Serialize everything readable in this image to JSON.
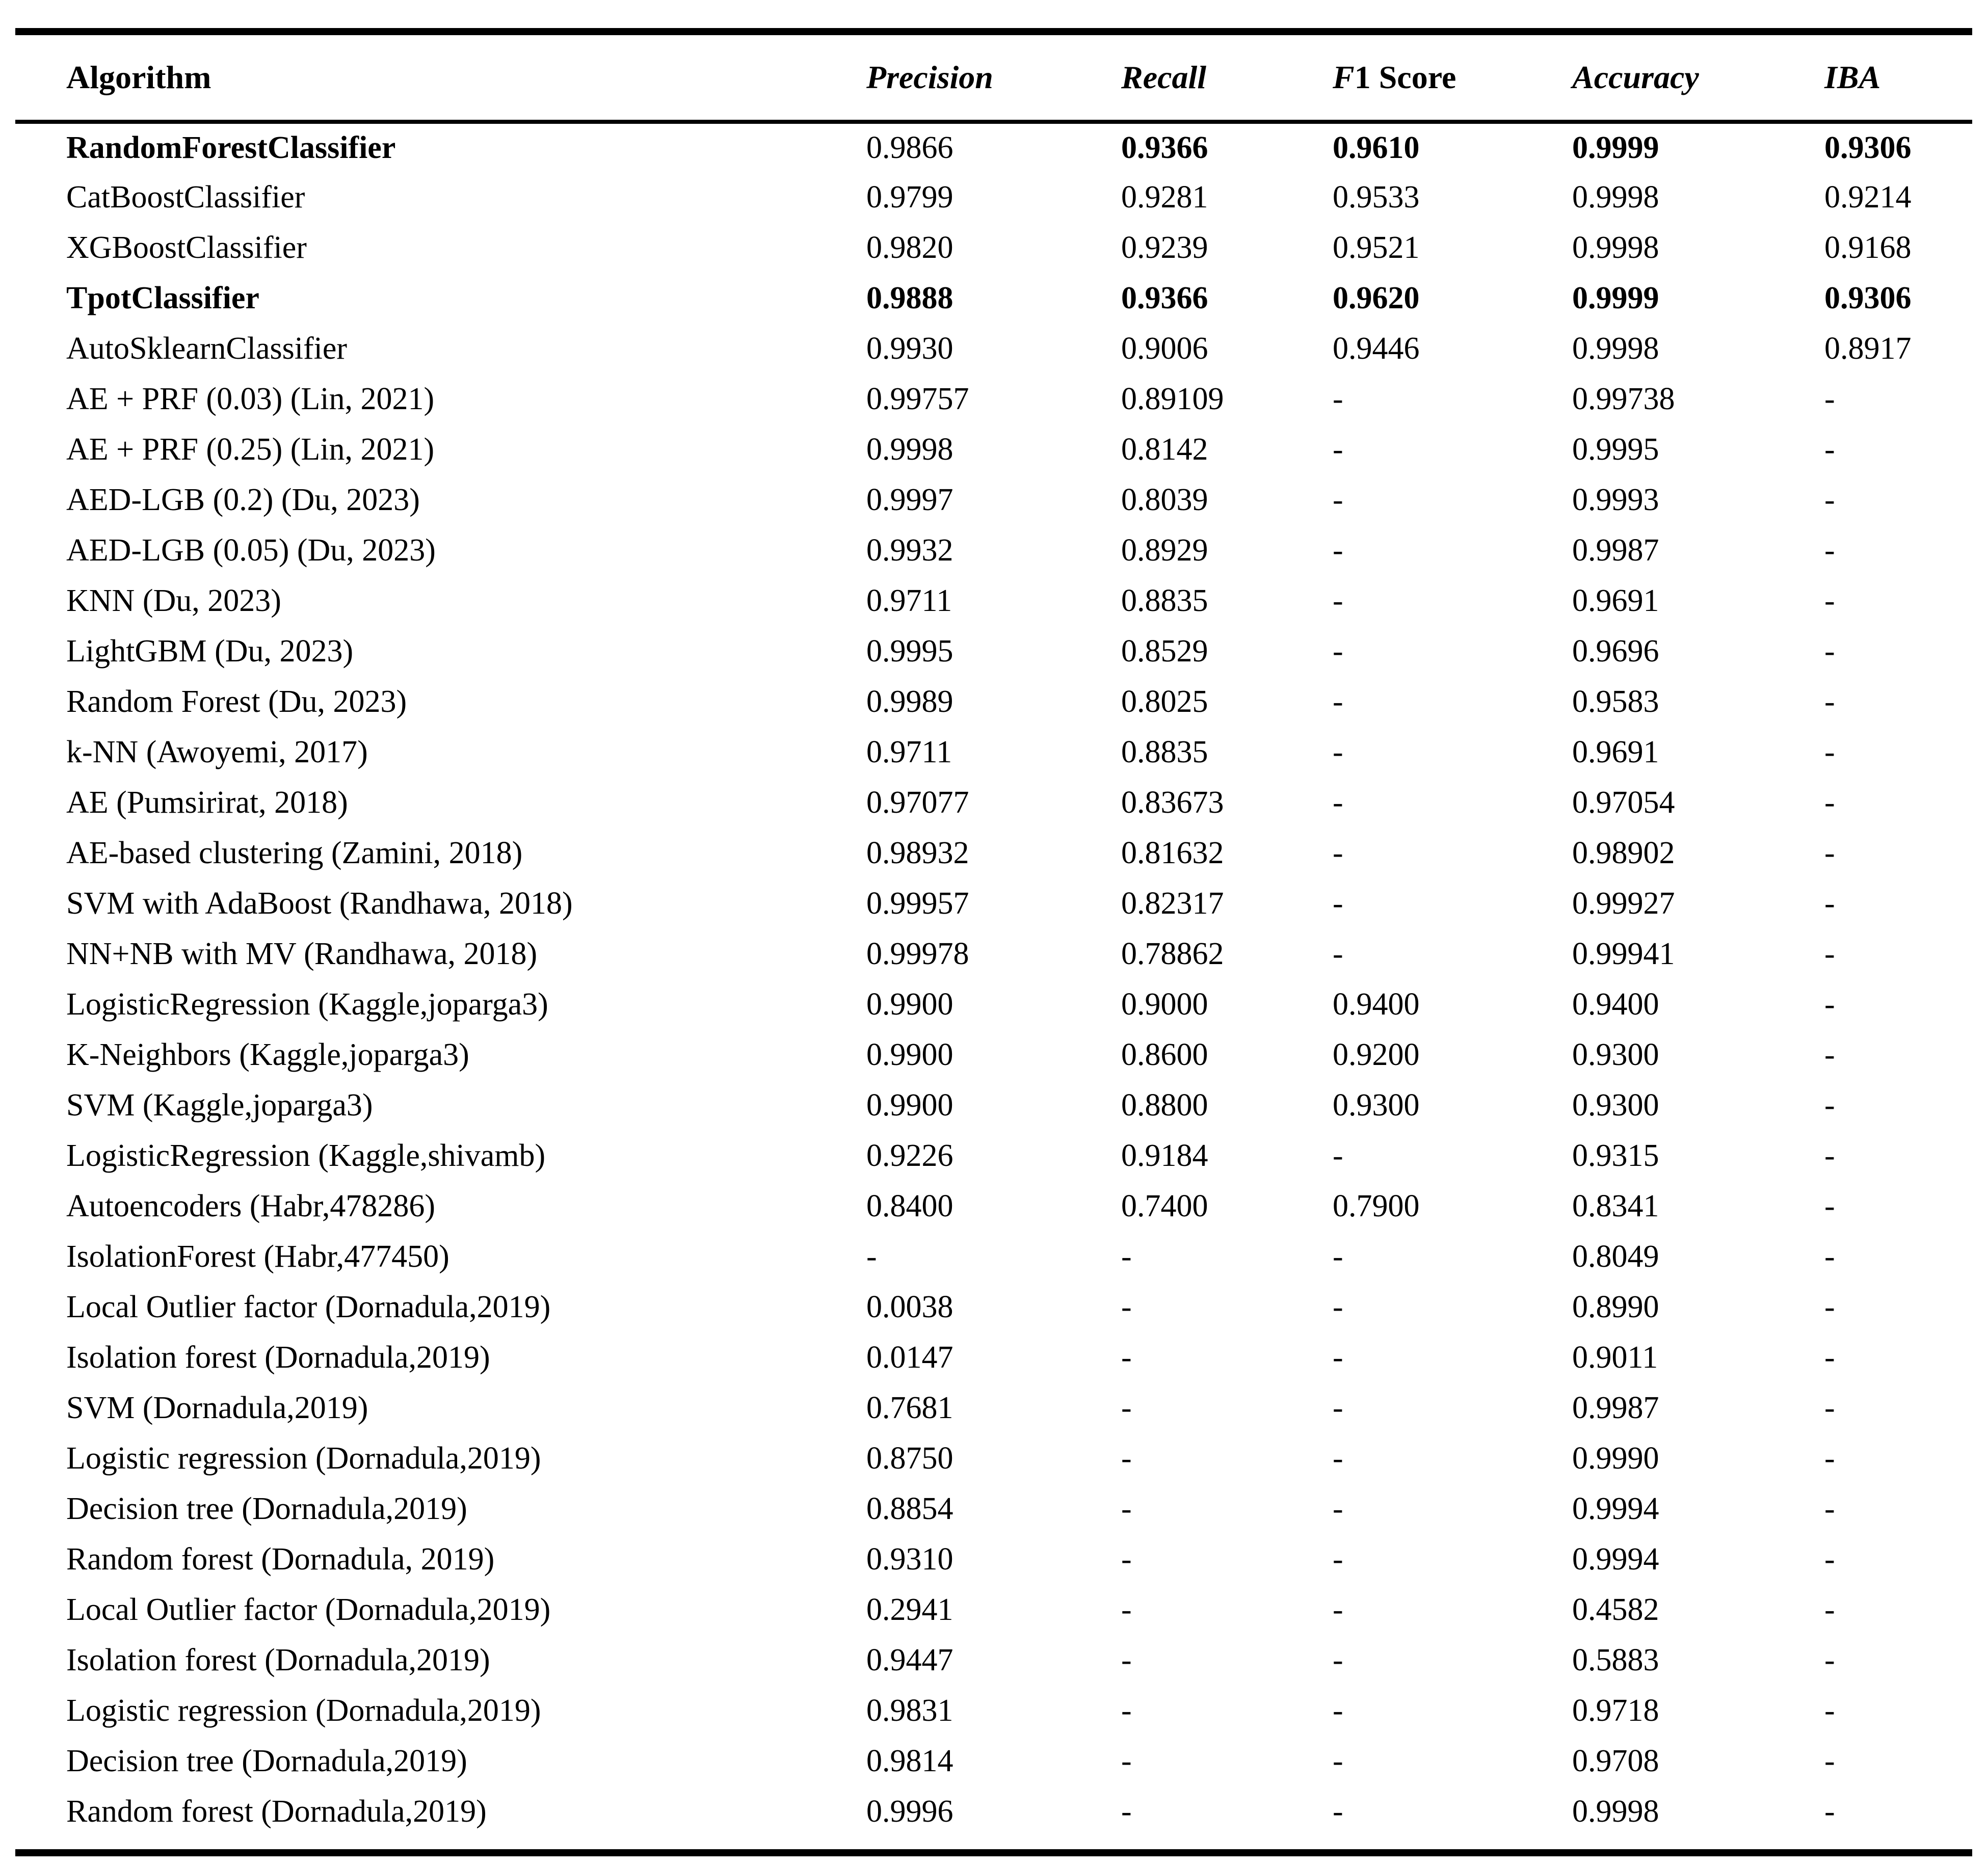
{
  "table": {
    "columns": [
      "Algorithm",
      "Precision",
      "Recall",
      "F1 Score",
      "Accuracy",
      "IBA"
    ],
    "missing_marker": "-",
    "rows": [
      {
        "algorithm": "RandomForestClassifier",
        "values": [
          "0.9866",
          "0.9366",
          "0.9610",
          "0.9999",
          "0.9306"
        ],
        "bold_name": true,
        "bold_values": [
          false,
          true,
          true,
          true,
          true
        ]
      },
      {
        "algorithm": "CatBoostClassifier",
        "values": [
          "0.9799",
          "0.9281",
          "0.9533",
          "0.9998",
          "0.9214"
        ]
      },
      {
        "algorithm": "XGBoostClassifier",
        "values": [
          "0.9820",
          "0.9239",
          "0.9521",
          "0.9998",
          "0.9168"
        ]
      },
      {
        "algorithm": "TpotClassifier",
        "values": [
          "0.9888",
          "0.9366",
          "0.9620",
          "0.9999",
          "0.9306"
        ],
        "bold_name": true,
        "bold_values": [
          true,
          true,
          true,
          true,
          true
        ]
      },
      {
        "algorithm": "AutoSklearnClassifier",
        "values": [
          "0.9930",
          "0.9006",
          "0.9446",
          "0.9998",
          "0.8917"
        ]
      },
      {
        "algorithm": "AE + PRF (0.03) (Lin, 2021)",
        "values": [
          "0.99757",
          "0.89109",
          "-",
          "0.99738",
          "-"
        ]
      },
      {
        "algorithm": "AE + PRF (0.25) (Lin, 2021)",
        "values": [
          "0.9998",
          "0.8142",
          "-",
          "0.9995",
          "-"
        ]
      },
      {
        "algorithm": "AED-LGB (0.2) (Du, 2023)",
        "values": [
          "0.9997",
          "0.8039",
          "-",
          "0.9993",
          "-"
        ]
      },
      {
        "algorithm": "AED-LGB (0.05) (Du, 2023)",
        "values": [
          "0.9932",
          "0.8929",
          "-",
          "0.9987",
          "-"
        ]
      },
      {
        "algorithm": "KNN (Du, 2023)",
        "values": [
          "0.9711",
          "0.8835",
          "-",
          "0.9691",
          "-"
        ]
      },
      {
        "algorithm": "LightGBM (Du, 2023)",
        "values": [
          "0.9995",
          "0.8529",
          "-",
          "0.9696",
          "-"
        ]
      },
      {
        "algorithm": "Random Forest (Du, 2023)",
        "values": [
          "0.9989",
          "0.8025",
          "-",
          "0.9583",
          "-"
        ]
      },
      {
        "algorithm": "k-NN (Awoyemi, 2017)",
        "values": [
          "0.9711",
          "0.8835",
          "-",
          "0.9691",
          "-"
        ]
      },
      {
        "algorithm": "AE (Pumsirirat, 2018)",
        "values": [
          "0.97077",
          "0.83673",
          "-",
          "0.97054",
          "-"
        ]
      },
      {
        "algorithm": "AE-based clustering (Zamini, 2018)",
        "values": [
          "0.98932",
          "0.81632",
          "-",
          "0.98902",
          "-"
        ]
      },
      {
        "algorithm": "SVM with AdaBoost (Randhawa, 2018)",
        "values": [
          "0.99957",
          "0.82317",
          "-",
          "0.99927",
          "-"
        ]
      },
      {
        "algorithm": "NN+NB with MV (Randhawa, 2018)",
        "values": [
          "0.99978",
          "0.78862",
          "-",
          "0.99941",
          "-"
        ]
      },
      {
        "algorithm": "LogisticRegression (Kaggle,joparga3)",
        "values": [
          "0.9900",
          "0.9000",
          "0.9400",
          "0.9400",
          "-"
        ]
      },
      {
        "algorithm": "K-Neighbors (Kaggle,joparga3)",
        "values": [
          "0.9900",
          "0.8600",
          "0.9200",
          "0.9300",
          "-"
        ]
      },
      {
        "algorithm": "SVM (Kaggle,joparga3)",
        "values": [
          "0.9900",
          "0.8800",
          "0.9300",
          "0.9300",
          "-"
        ]
      },
      {
        "algorithm": "LogisticRegression (Kaggle,shivamb)",
        "values": [
          "0.9226",
          "0.9184",
          "-",
          "0.9315",
          "-"
        ]
      },
      {
        "algorithm": "Autoencoders (Habr,478286)",
        "values": [
          "0.8400",
          "0.7400",
          "0.7900",
          "0.8341",
          "-"
        ]
      },
      {
        "algorithm": "IsolationForest (Habr,477450)",
        "values": [
          "-",
          "-",
          "-",
          "0.8049",
          "-"
        ]
      },
      {
        "algorithm": "Local Outlier factor (Dornadula,2019)",
        "values": [
          "0.0038",
          "-",
          "-",
          "0.8990",
          "-"
        ]
      },
      {
        "algorithm": "Isolation forest (Dornadula,2019)",
        "values": [
          "0.0147",
          "-",
          "-",
          "0.9011",
          "-"
        ]
      },
      {
        "algorithm": "SVM (Dornadula,2019)",
        "values": [
          "0.7681",
          "-",
          "-",
          "0.9987",
          "-"
        ]
      },
      {
        "algorithm": "Logistic regression (Dornadula,2019)",
        "values": [
          "0.8750",
          "-",
          "-",
          "0.9990",
          "-"
        ]
      },
      {
        "algorithm": "Decision tree (Dornadula,2019)",
        "values": [
          "0.8854",
          "-",
          "-",
          "0.9994",
          "-"
        ]
      },
      {
        "algorithm": "Random forest (Dornadula, 2019)",
        "values": [
          "0.9310",
          "-",
          "-",
          "0.9994",
          "-"
        ]
      },
      {
        "algorithm": "Local Outlier factor (Dornadula,2019)",
        "values": [
          "0.2941",
          "-",
          "-",
          "0.4582",
          "-"
        ]
      },
      {
        "algorithm": "Isolation forest (Dornadula,2019)",
        "values": [
          "0.9447",
          "-",
          "-",
          "0.5883",
          "-"
        ]
      },
      {
        "algorithm": "Logistic regression (Dornadula,2019)",
        "values": [
          "0.9831",
          "-",
          "-",
          "0.9718",
          "-"
        ]
      },
      {
        "algorithm": "Decision tree (Dornadula,2019)",
        "values": [
          "0.9814",
          "-",
          "-",
          "0.9708",
          "-"
        ]
      },
      {
        "algorithm": "Random forest (Dornadula,2019)",
        "values": [
          "0.9996",
          "-",
          "-",
          "0.9998",
          "-"
        ]
      }
    ]
  }
}
